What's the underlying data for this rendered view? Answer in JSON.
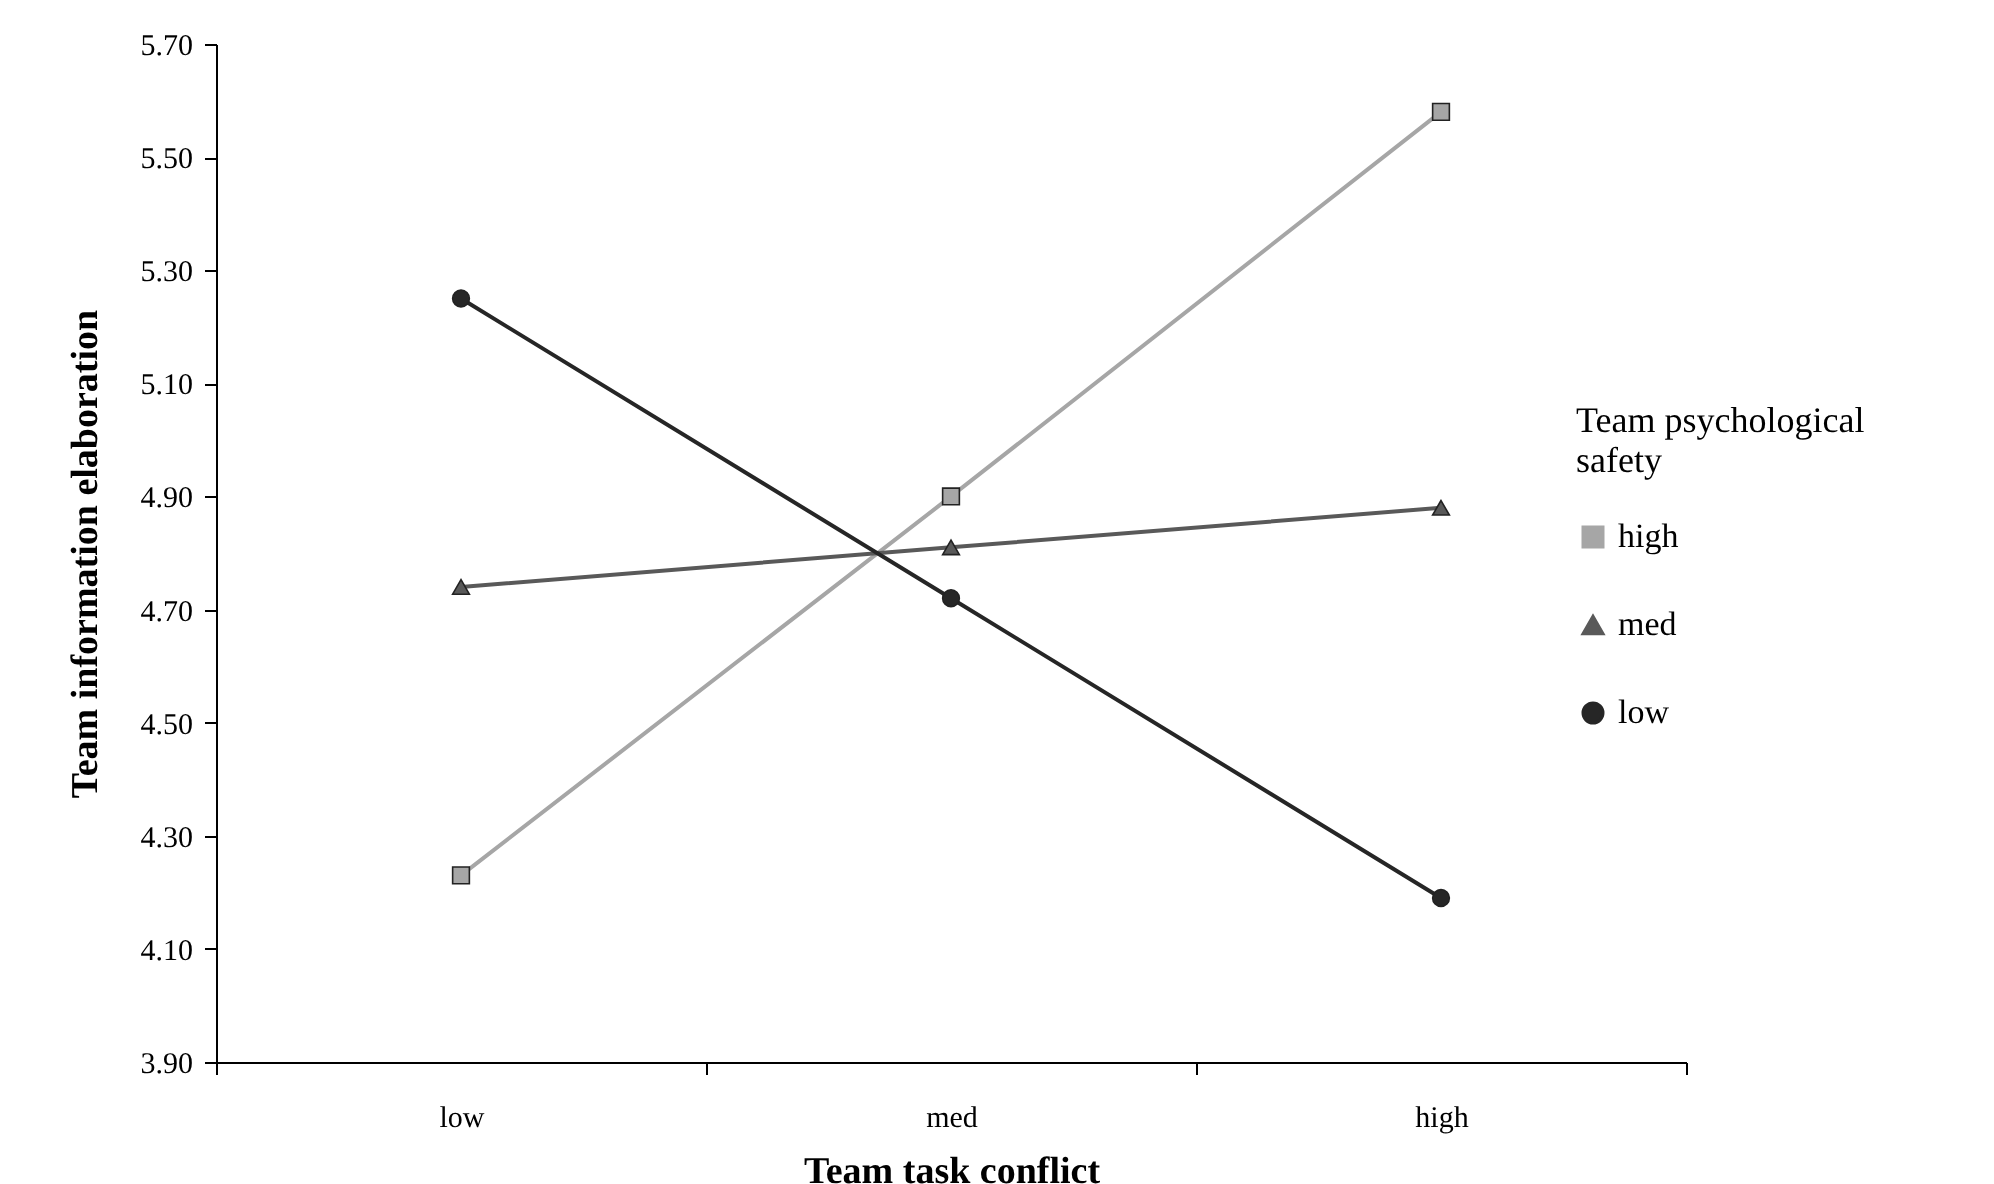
{
  "chart_data": {
    "type": "line",
    "xlabel": "Team task conflict",
    "ylabel": "Team information elaboration",
    "legend_title": "Team psychological safety",
    "categories": [
      "low",
      "med",
      "high"
    ],
    "series": [
      {
        "name": "high",
        "color": "#a6a6a6",
        "marker": "square",
        "values": [
          4.23,
          4.9,
          5.58
        ]
      },
      {
        "name": "med",
        "color": "#595959",
        "marker": "triangle",
        "values": [
          4.74,
          4.81,
          4.88
        ]
      },
      {
        "name": "low",
        "color": "#262626",
        "marker": "circle",
        "values": [
          5.25,
          4.72,
          4.19
        ]
      }
    ],
    "ylim": [
      3.9,
      5.7
    ],
    "yticks": [
      {
        "value": 3.9,
        "label": "3.90"
      },
      {
        "value": 4.1,
        "label": "4.10"
      },
      {
        "value": 4.3,
        "label": "4.30"
      },
      {
        "value": 4.5,
        "label": "4.50"
      },
      {
        "value": 4.7,
        "label": "4.70"
      },
      {
        "value": 4.9,
        "label": "4.90"
      },
      {
        "value": 5.1,
        "label": "5.10"
      },
      {
        "value": 5.3,
        "label": "5.30"
      },
      {
        "value": 5.5,
        "label": "5.50"
      },
      {
        "value": 5.7,
        "label": "5.70"
      }
    ],
    "grid": false,
    "legend": "right",
    "line_style": "solid"
  }
}
